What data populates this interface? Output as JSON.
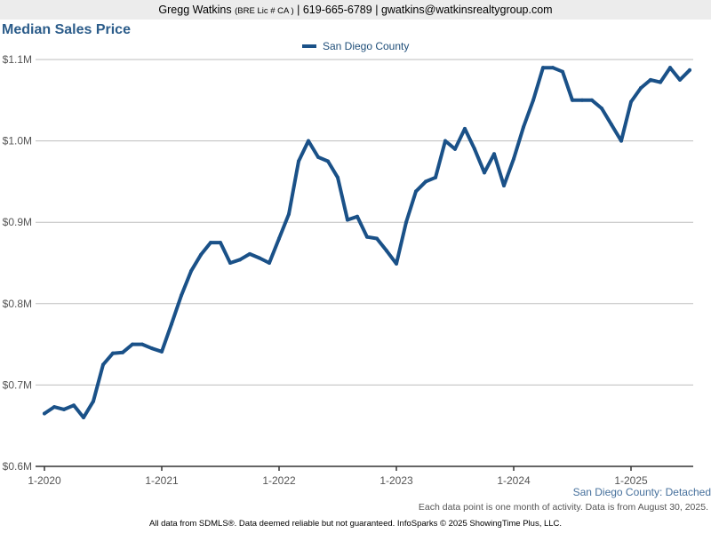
{
  "header": {
    "agent_name": "Gregg Watkins",
    "license": "(BRE Lic # CA )",
    "separator": "|",
    "phone": "619-665-6789",
    "email": "gwatkins@watkinsrealtygroup.com"
  },
  "subtitle_note": "San Diego County: Detached",
  "activity_note": "Each data point is one month of activity. Data is from August 30, 2025.",
  "footer_note": "All data from SDMLS®. Data deemed reliable but not guaranteed. InfoSparks © 2025 ShowingTime Plus, LLC.",
  "colors": {
    "line": "#1a5188",
    "title": "#2b5c8a",
    "grid": "#bdbdbd",
    "axis": "#333333",
    "tick_label": "#555555"
  },
  "chart_data": {
    "type": "line",
    "title": "Median Sales Price",
    "legend_position": "top-center",
    "grid": true,
    "ylim": [
      600000,
      1100000
    ],
    "yticks": [
      {
        "value": 600000,
        "label": "$0.6M"
      },
      {
        "value": 700000,
        "label": "$0.7M"
      },
      {
        "value": 800000,
        "label": "$0.8M"
      },
      {
        "value": 900000,
        "label": "$0.9M"
      },
      {
        "value": 1000000,
        "label": "$1.0M"
      },
      {
        "value": 1100000,
        "label": "$1.1M"
      }
    ],
    "xticks": [
      {
        "index": 0,
        "label": "1-2020"
      },
      {
        "index": 12,
        "label": "1-2021"
      },
      {
        "index": 24,
        "label": "1-2022"
      },
      {
        "index": 36,
        "label": "1-2023"
      },
      {
        "index": 48,
        "label": "1-2024"
      },
      {
        "index": 60,
        "label": "1-2025"
      }
    ],
    "series": [
      {
        "name": "San Diego County",
        "values": [
          665000,
          673000,
          670000,
          675000,
          660000,
          680000,
          725000,
          739000,
          740000,
          750000,
          750000,
          745000,
          741000,
          775000,
          810000,
          840000,
          860000,
          875000,
          875000,
          850000,
          854000,
          861000,
          856000,
          850000,
          880000,
          910000,
          975000,
          1000000,
          980000,
          975000,
          955000,
          903000,
          907000,
          882000,
          880000,
          865000,
          849000,
          900000,
          938000,
          950000,
          955000,
          1000000,
          990000,
          1015000,
          990000,
          961000,
          984000,
          945000,
          978000,
          1017000,
          1050000,
          1090000,
          1090000,
          1085000,
          1050000,
          1050000,
          1050000,
          1040000,
          1020000,
          1000000,
          1048000,
          1065000,
          1075000,
          1072000,
          1090000,
          1075000,
          1087000
        ]
      }
    ]
  }
}
